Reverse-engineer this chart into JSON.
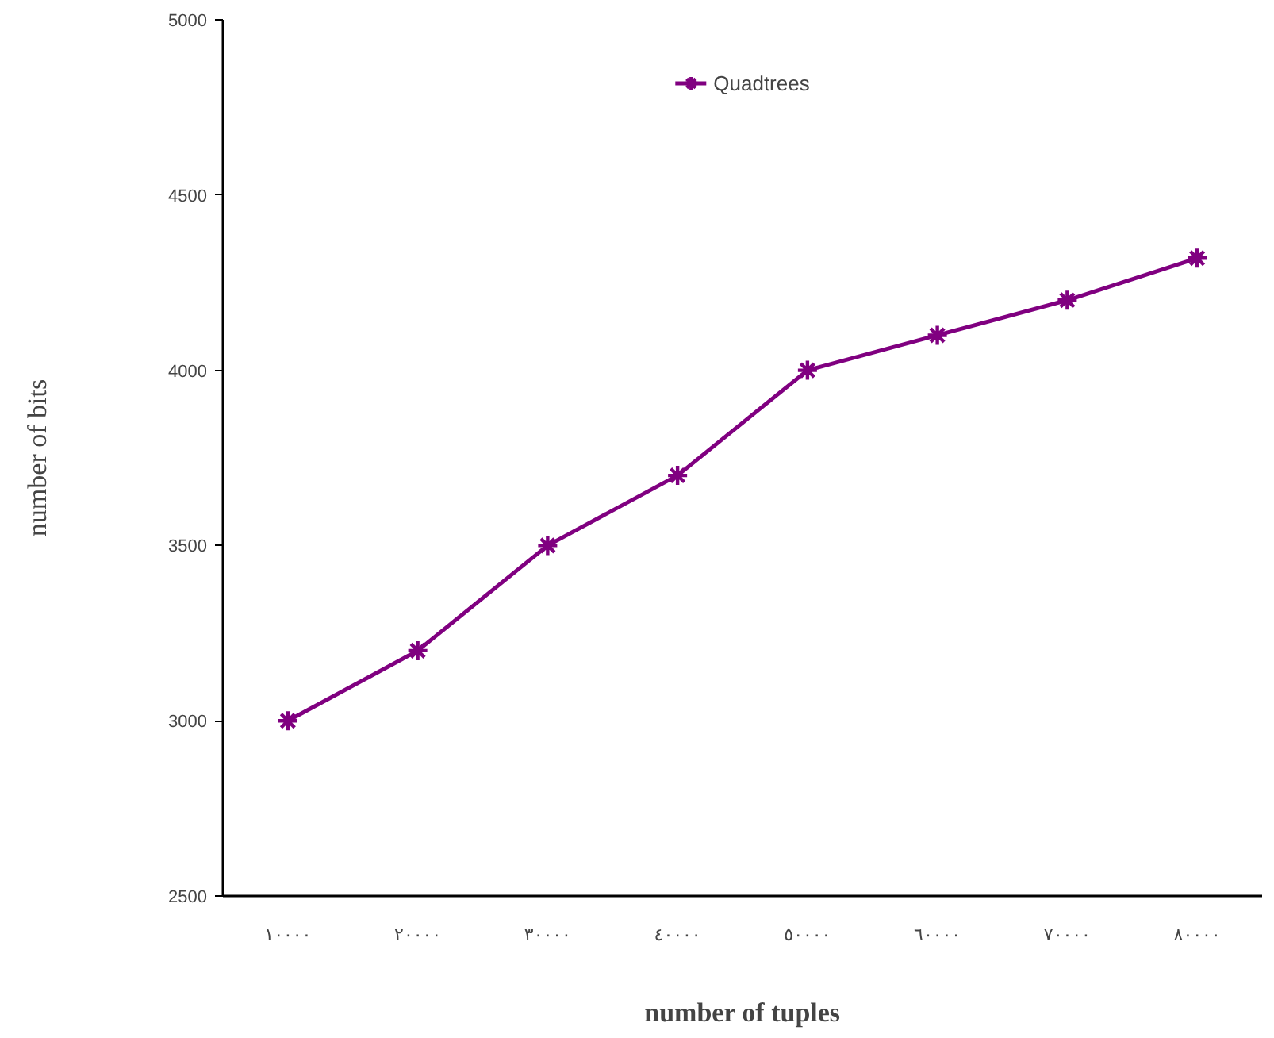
{
  "chart_data": {
    "type": "line",
    "xlabel": "number of tuples",
    "ylabel": "number of bits",
    "categories": [
      "١٠٠٠٠",
      "٢٠٠٠٠",
      "٣٠٠٠٠",
      "٤٠٠٠٠",
      "٥٠٠٠٠",
      "٦٠٠٠٠",
      "٧٠٠٠٠",
      "٨٠٠٠٠"
    ],
    "series": [
      {
        "name": "Quadtrees",
        "color": "#800080",
        "values": [
          3000,
          3200,
          3500,
          3700,
          4000,
          4100,
          4200,
          4320
        ]
      }
    ],
    "ylim": [
      2500,
      5000
    ],
    "yticks": [
      2500,
      3000,
      3500,
      4000,
      4500,
      5000
    ],
    "marker": "cross",
    "line_style": "solid",
    "legend": "top",
    "grid": false
  }
}
